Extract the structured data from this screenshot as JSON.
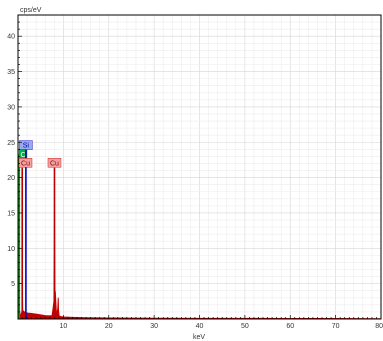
{
  "chart_data": {
    "type": "line",
    "title": "",
    "xlabel": "keV",
    "ylabel": "cps/eV",
    "xlim": [
      0,
      80
    ],
    "ylim": [
      0,
      43
    ],
    "grid": true,
    "xticks": [
      10,
      20,
      30,
      40,
      50,
      60,
      70,
      80
    ],
    "xtick_labels": [
      "10",
      "20",
      "30",
      "40",
      "50",
      "60",
      "70",
      "80"
    ],
    "yticks": [
      5,
      10,
      15,
      20,
      25,
      30,
      35,
      40
    ],
    "ytick_labels": [
      "5",
      "10",
      "15",
      "20",
      "25",
      "30",
      "35",
      "40"
    ],
    "series": [
      {
        "color": "#c00000",
        "x": [
          0,
          0.15,
          0.25,
          0.3,
          0.35,
          0.45,
          0.55,
          0.65,
          0.9,
          0.93,
          0.95,
          0.98,
          1.05,
          1.2,
          1.5,
          1.8,
          2.2,
          3,
          4,
          5,
          6,
          7,
          7.5,
          7.9,
          8.0,
          8.04,
          8.09,
          8.15,
          8.25,
          8.5,
          8.75,
          8.85,
          8.9,
          8.95,
          9.1,
          9.5,
          10,
          12,
          15,
          20,
          30,
          40,
          50,
          60,
          70,
          80
        ],
        "values": [
          0,
          0.6,
          4,
          0.8,
          1.5,
          0.7,
          0.5,
          0.6,
          1.2,
          5.2,
          21.2,
          5,
          1.3,
          1.1,
          1.0,
          0.9,
          0.85,
          0.8,
          0.7,
          0.6,
          0.5,
          0.45,
          0.5,
          2.5,
          10.8,
          21.2,
          10.8,
          4.1,
          3.8,
          0.6,
          1.5,
          3.0,
          2.8,
          1.2,
          0.4,
          0.35,
          0.3,
          0.25,
          0.2,
          0.15,
          0.12,
          0.1,
          0.1,
          0.08,
          0.08,
          0.05
        ]
      }
    ],
    "markers": [
      {
        "label": "C",
        "x": 0.28,
        "color": "#00a000",
        "box_fill": "#00b050",
        "text_color": "#ffffff",
        "level": 23.3
      },
      {
        "label": "Si",
        "x": 1.74,
        "color": "#0000c0",
        "box_fill": "#9aaaf0",
        "text_color": "#0000a0",
        "level": 24.6
      },
      {
        "label": "Cu",
        "x": 0.93,
        "color": "#c00000",
        "box_fill": "#f4a0a0",
        "text_color": "#800000",
        "level": 22.1
      },
      {
        "label": "Cu",
        "x": 8.04,
        "color": "#c00000",
        "box_fill": "#f4a0a0",
        "text_color": "#800000",
        "level": 22.1
      }
    ],
    "marker_line_tops": {
      "Si": 24.0,
      "Cu": 21.4
    }
  }
}
